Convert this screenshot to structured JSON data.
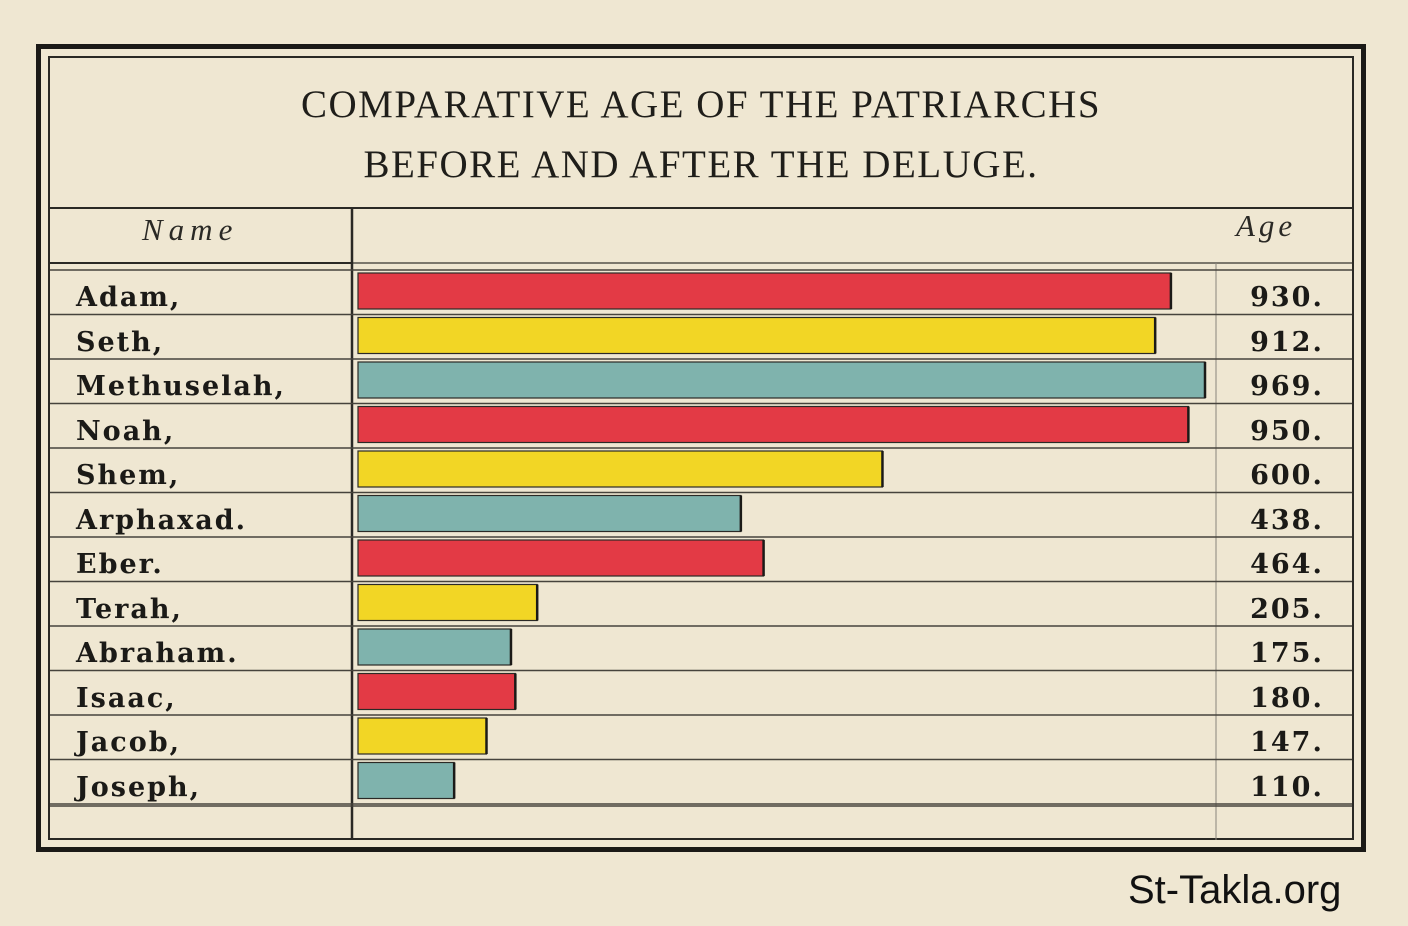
{
  "chart_data": {
    "type": "bar",
    "orientation": "horizontal",
    "title": "COMPARATIVE AGE OF THE PATRIARCHS",
    "subtitle": "BEFORE AND AFTER THE DELUGE.",
    "column_headers": {
      "name": "Name",
      "age": "Age"
    },
    "categories": [
      "Adam,",
      "Seth,",
      "Methuselah,",
      "Noah,",
      "Shem,",
      "Arphaxad.",
      "Eber.",
      "Terah,",
      "Abraham.",
      "Isaac,",
      "Jacob,",
      "Joseph,"
    ],
    "values": [
      930,
      912,
      969,
      950,
      600,
      438,
      464,
      205,
      175,
      180,
      147,
      110
    ],
    "value_labels": [
      "930.",
      "912.",
      "969.",
      "950.",
      "600.",
      "438.",
      "464.",
      "205.",
      "175.",
      "180.",
      "147.",
      "110."
    ],
    "bar_colors": [
      "#e33a45",
      "#f2d625",
      "#7fb3ad",
      "#e33a45",
      "#f2d625",
      "#7fb3ad",
      "#e33a45",
      "#f2d625",
      "#7fb3ad",
      "#e33a45",
      "#f2d625",
      "#7fb3ad"
    ],
    "xlim": [
      0,
      969
    ],
    "grid": true
  },
  "watermark": "St-Takla.org"
}
